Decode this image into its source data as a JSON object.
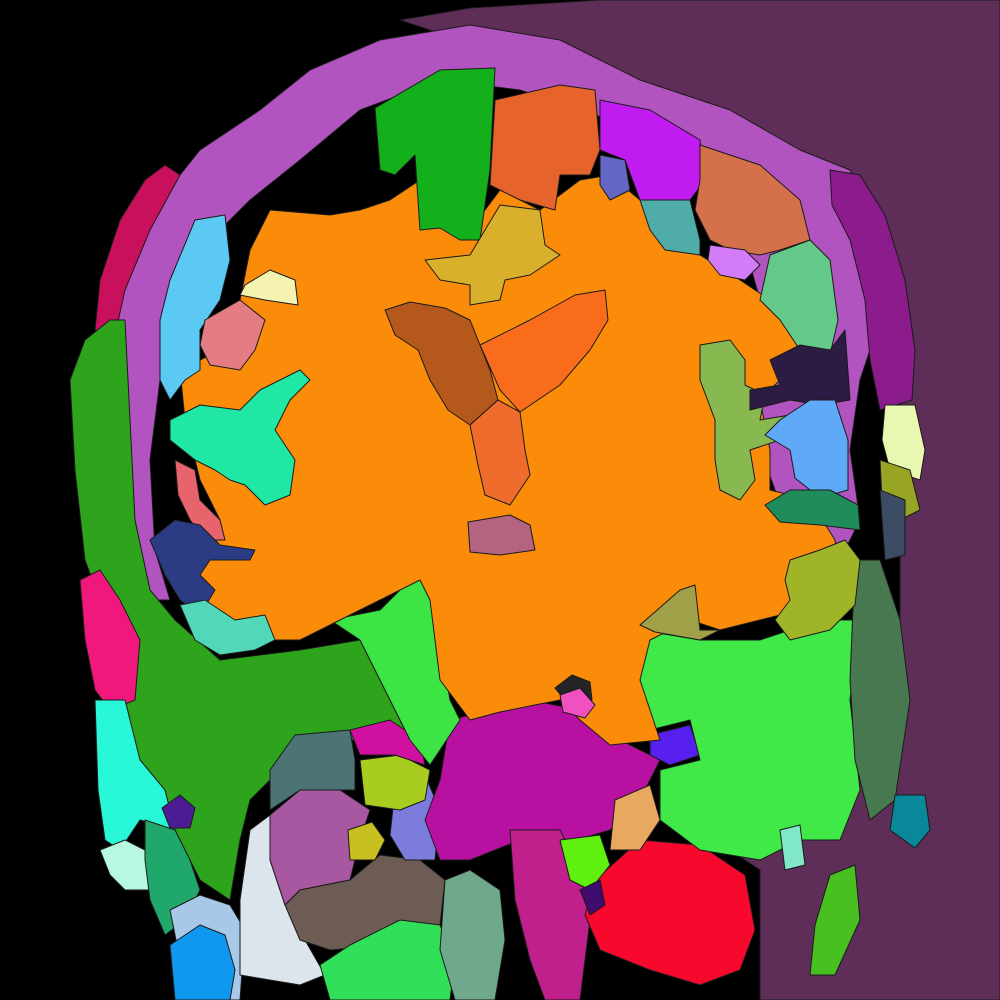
{
  "image": {
    "kind": "brain segmentation map, coronal slice",
    "background_color": "#000000"
  },
  "regions": [
    {
      "name": "background-right",
      "color": "#5e2e58"
    },
    {
      "name": "scalp-outer-ring",
      "color": "#b254c0"
    },
    {
      "name": "skin-left-magenta",
      "color": "#c8105c"
    },
    {
      "name": "left-temporal-muscle",
      "color": "#2ea41c"
    },
    {
      "name": "left-pink-lower",
      "color": "#f0187c"
    },
    {
      "name": "left-cyan-lower",
      "color": "#28f8d8"
    },
    {
      "name": "left-pale-mint",
      "color": "#b8f8e0"
    },
    {
      "name": "left-green-teal",
      "color": "#20a86c"
    },
    {
      "name": "left-light-blue-bottom",
      "color": "#a8c8e8"
    },
    {
      "name": "left-blue-bottom",
      "color": "#1098f0"
    },
    {
      "name": "light-gray-bottom",
      "color": "#dce4ec"
    },
    {
      "name": "brown-lower",
      "color": "#6c5c54"
    },
    {
      "name": "bright-green-bottom",
      "color": "#30e058"
    },
    {
      "name": "gray-green-bottom",
      "color": "#70a88c"
    },
    {
      "name": "mauve-lower-left",
      "color": "#a858a0"
    },
    {
      "name": "slate-teal",
      "color": "#4c7474"
    },
    {
      "name": "olive-small-lower",
      "color": "#c8c020"
    },
    {
      "name": "periwinkle",
      "color": "#7c7cdc"
    },
    {
      "name": "lime-olive",
      "color": "#a8cc20"
    },
    {
      "name": "magenta-central-lower",
      "color": "#b810a0"
    },
    {
      "name": "magenta-small-upper",
      "color": "#d010a0"
    },
    {
      "name": "violet-red-lower",
      "color": "#c0208c"
    },
    {
      "name": "red-lower-right",
      "color": "#f8082c"
    },
    {
      "name": "lime-small",
      "color": "#60f010"
    },
    {
      "name": "deep-purple-small",
      "color": "#400c70"
    },
    {
      "name": "sand-orange",
      "color": "#e8a860"
    },
    {
      "name": "blue-violet",
      "color": "#5820f0"
    },
    {
      "name": "right-bright-green",
      "color": "#40e848"
    },
    {
      "name": "left-bright-green-mid",
      "color": "#3ce444"
    },
    {
      "name": "right-dark-green-strip",
      "color": "#487850"
    },
    {
      "name": "right-green-bottom",
      "color": "#48c020"
    },
    {
      "name": "right-teal-small",
      "color": "#088898"
    },
    {
      "name": "right-mint-small",
      "color": "#80e8c8"
    },
    {
      "name": "white-matter-orange",
      "color": "#fa8c0a"
    },
    {
      "name": "green-top",
      "color": "#14b01c"
    },
    {
      "name": "orange-top",
      "color": "#e6642c"
    },
    {
      "name": "violet-top",
      "color": "#c01cf0"
    },
    {
      "name": "slate-blue-top",
      "color": "#6468c4"
    },
    {
      "name": "coral-top-right",
      "color": "#d4704c"
    },
    {
      "name": "teal-top-right",
      "color": "#50aca8"
    },
    {
      "name": "lilac-top-right",
      "color": "#d47cf8"
    },
    {
      "name": "mustard-top",
      "color": "#d8b02c"
    },
    {
      "name": "sea-green-right",
      "color": "#64c888"
    },
    {
      "name": "right-purple-band",
      "color": "#8c1c8c"
    },
    {
      "name": "right-pale-yellow",
      "color": "#e8f8b0"
    },
    {
      "name": "right-olive-small",
      "color": "#98a424"
    },
    {
      "name": "right-slate-small",
      "color": "#3c4c64"
    },
    {
      "name": "left-sky-blue",
      "color": "#5cc8f4"
    },
    {
      "name": "left-pale-yellow",
      "color": "#f4f4b0"
    },
    {
      "name": "left-rose",
      "color": "#e47c84"
    },
    {
      "name": "left-aqua-green",
      "color": "#20e8a4"
    },
    {
      "name": "left-salmon",
      "color": "#e8646c"
    },
    {
      "name": "left-navy",
      "color": "#2c3c84"
    },
    {
      "name": "left-aquamarine-lower",
      "color": "#50d8b8"
    },
    {
      "name": "right-olive-green",
      "color": "#88b850"
    },
    {
      "name": "right-dark-purple",
      "color": "#2c1c44"
    },
    {
      "name": "right-light-blue",
      "color": "#60a8f8"
    },
    {
      "name": "right-dark-sea-green",
      "color": "#208c5c"
    },
    {
      "name": "right-yellow-green",
      "color": "#a0b428"
    },
    {
      "name": "right-olive-lower",
      "color": "#a0a048"
    },
    {
      "name": "ventricle-left",
      "color": "#b4581c"
    },
    {
      "name": "ventricle-right",
      "color": "#f86c1c"
    },
    {
      "name": "ventricle-lower",
      "color": "#f06c2c"
    },
    {
      "name": "central-mauve",
      "color": "#b46480"
    },
    {
      "name": "dark-small-center",
      "color": "#242424"
    },
    {
      "name": "pink-small-center",
      "color": "#f050c0"
    },
    {
      "name": "left-indigo-small",
      "color": "#4c1c94"
    }
  ]
}
